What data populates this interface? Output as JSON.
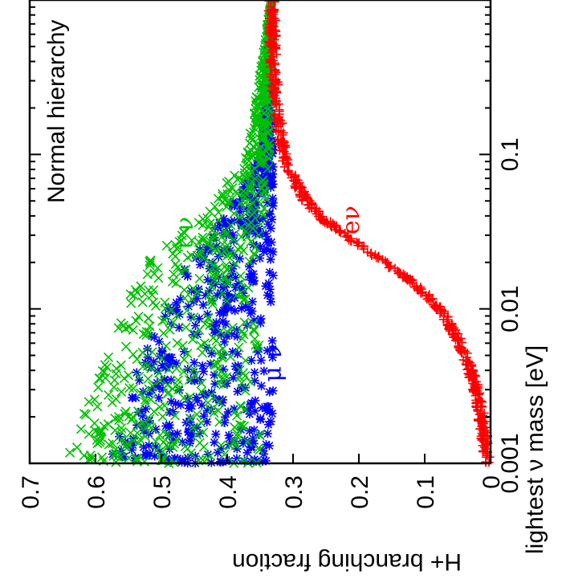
{
  "chart_data": {
    "type": "scatter",
    "orientation_note": "figure rendered rotated 90 degrees clockwise",
    "title": "",
    "annotation": "Normal hierarchy",
    "xlabel": "lightest ν mass [eV]",
    "ylabel": "H+ branching fraction",
    "x_scale": "log",
    "xlim": [
      0.001,
      1
    ],
    "ylim": [
      0,
      0.7
    ],
    "x_ticks": [
      {
        "value": 0.001,
        "label": "0.001"
      },
      {
        "value": 0.01,
        "label": "0.01"
      },
      {
        "value": 0.1,
        "label": "0.1"
      }
    ],
    "y_ticks": [
      {
        "value": 0,
        "label": "0"
      },
      {
        "value": 0.1,
        "label": "0.1"
      },
      {
        "value": 0.2,
        "label": "0.2"
      },
      {
        "value": 0.3,
        "label": "0.3"
      },
      {
        "value": 0.4,
        "label": "0.4"
      },
      {
        "value": 0.5,
        "label": "0.5"
      },
      {
        "value": 0.6,
        "label": "0.6"
      },
      {
        "value": 0.7,
        "label": "0.7"
      }
    ],
    "series": [
      {
        "name": "eν",
        "color": "#ff0000",
        "marker": "+",
        "points": [
          [
            0.001,
            0.005
          ],
          [
            0.0012,
            0.007
          ],
          [
            0.0015,
            0.01
          ],
          [
            0.002,
            0.014
          ],
          [
            0.0025,
            0.018
          ],
          [
            0.003,
            0.022
          ],
          [
            0.004,
            0.03
          ],
          [
            0.005,
            0.038
          ],
          [
            0.006,
            0.047
          ],
          [
            0.008,
            0.062
          ],
          [
            0.01,
            0.078
          ],
          [
            0.012,
            0.095
          ],
          [
            0.015,
            0.12
          ],
          [
            0.02,
            0.16
          ],
          [
            0.025,
            0.195
          ],
          [
            0.03,
            0.22
          ],
          [
            0.04,
            0.26
          ],
          [
            0.05,
            0.28
          ],
          [
            0.07,
            0.3
          ],
          [
            0.1,
            0.315
          ],
          [
            0.2,
            0.325
          ],
          [
            0.4,
            0.33
          ],
          [
            1.0,
            0.333
          ]
        ]
      },
      {
        "name": "μ ν",
        "color": "#0000ff",
        "marker": "*",
        "points": [
          [
            0.001,
            0.33
          ],
          [
            0.001,
            0.58
          ],
          [
            0.002,
            0.33
          ],
          [
            0.002,
            0.56
          ],
          [
            0.005,
            0.33
          ],
          [
            0.005,
            0.53
          ],
          [
            0.01,
            0.33
          ],
          [
            0.01,
            0.5
          ],
          [
            0.02,
            0.33
          ],
          [
            0.02,
            0.46
          ],
          [
            0.05,
            0.33
          ],
          [
            0.05,
            0.39
          ],
          [
            0.1,
            0.33
          ],
          [
            0.1,
            0.35
          ],
          [
            0.3,
            0.333
          ],
          [
            1.0,
            0.333
          ]
        ]
      },
      {
        "name": "τ ν",
        "color": "#00c000",
        "marker": "x",
        "points": [
          [
            0.001,
            0.35
          ],
          [
            0.001,
            0.65
          ],
          [
            0.002,
            0.35
          ],
          [
            0.002,
            0.62
          ],
          [
            0.005,
            0.35
          ],
          [
            0.005,
            0.59
          ],
          [
            0.01,
            0.35
          ],
          [
            0.01,
            0.56
          ],
          [
            0.02,
            0.36
          ],
          [
            0.02,
            0.52
          ],
          [
            0.05,
            0.34
          ],
          [
            0.05,
            0.42
          ],
          [
            0.1,
            0.335
          ],
          [
            0.1,
            0.37
          ],
          [
            0.3,
            0.333
          ],
          [
            1.0,
            0.333
          ]
        ]
      }
    ],
    "series_labels": [
      {
        "name": "τ ν",
        "color": "#00c000"
      },
      {
        "name": "μ ν",
        "color": "#0000ff"
      },
      {
        "name": "eν",
        "color": "#ff0000"
      }
    ]
  }
}
